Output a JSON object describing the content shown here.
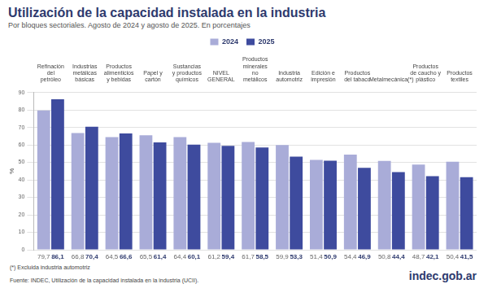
{
  "chart_data": {
    "type": "bar",
    "title": "Utilización de la capacidad instalada en la industria",
    "subtitle": "Por bloques sectoriales. Agosto de 2024 y agosto de 2025. En porcentajes",
    "categories": [
      "Refinación del petróleo",
      "Industrias metálicas básicas",
      "Productos alimenticios y bebidas",
      "Papel y cartón",
      "Sustancias y productos químicos",
      "NIVEL GENERAL",
      "Productos minerales no metálicos",
      "Industria automotriz",
      "Edición e impresión",
      "Productos del tabaco",
      "Metalmecánica(*)",
      "Productos de caucho y plástico",
      "Productos textiles"
    ],
    "series": [
      {
        "name": "2024",
        "color": "#a9acd8",
        "values": [
          79.7,
          66.8,
          64.5,
          65.5,
          64.4,
          61.2,
          61.7,
          59.9,
          51.4,
          54.4,
          50.8,
          48.7,
          50.4
        ],
        "value_labels": [
          "79,7",
          "66,8",
          "64,5",
          "65,5",
          "64,4",
          "61,2",
          "61,7",
          "59,9",
          "51,4",
          "54,4",
          "50,8",
          "48,7",
          "50,4"
        ]
      },
      {
        "name": "2025",
        "color": "#3e4b9e",
        "values": [
          86.1,
          70.4,
          66.6,
          61.4,
          60.1,
          59.4,
          58.5,
          53.3,
          50.9,
          46.9,
          44.4,
          42.1,
          41.5
        ],
        "value_labels": [
          "86,1",
          "70,4",
          "66,6",
          "61,4",
          "60,1",
          "59,4",
          "58,5",
          "53,3",
          "50,9",
          "46,9",
          "44,4",
          "42,1",
          "41,5"
        ]
      }
    ],
    "y_label": "%",
    "ylim": [
      0,
      90
    ],
    "yticks": [
      0,
      10,
      20,
      30,
      40,
      50,
      60,
      70,
      80,
      90
    ],
    "grid": true,
    "legend": "top",
    "data_labels": true,
    "notes": [
      "(*) Excluida industria automotriz",
      "Fuente: INDEC, Utilización de la capacidad instalada en la industria (UCII)."
    ],
    "source_url": "indec.gob.ar"
  }
}
